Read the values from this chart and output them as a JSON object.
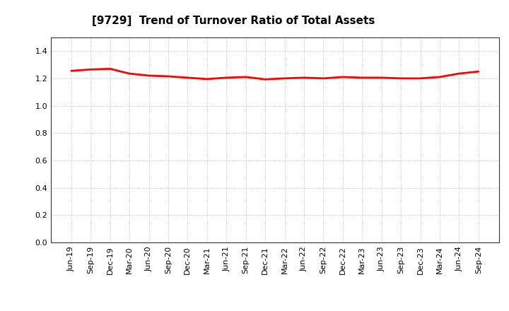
{
  "title": "[9729]  Trend of Turnover Ratio of Total Assets",
  "xlabels": [
    "Jun-19",
    "Sep-19",
    "Dec-19",
    "Mar-20",
    "Jun-20",
    "Sep-20",
    "Dec-20",
    "Mar-21",
    "Jun-21",
    "Sep-21",
    "Dec-21",
    "Mar-22",
    "Jun-22",
    "Sep-22",
    "Dec-22",
    "Mar-23",
    "Jun-23",
    "Sep-23",
    "Dec-23",
    "Mar-24",
    "Jun-24",
    "Sep-24"
  ],
  "values": [
    1.255,
    1.265,
    1.27,
    1.235,
    1.22,
    1.215,
    1.205,
    1.195,
    1.205,
    1.21,
    1.193,
    1.2,
    1.205,
    1.2,
    1.21,
    1.205,
    1.205,
    1.2,
    1.2,
    1.21,
    1.235,
    1.25
  ],
  "line_color": "#ff0000",
  "line_width": 2.0,
  "ylim": [
    0.0,
    1.5
  ],
  "yticks": [
    0.0,
    0.2,
    0.4,
    0.6,
    0.8,
    1.0,
    1.2,
    1.4
  ],
  "background_color": "#ffffff",
  "grid_color": "#999999",
  "title_fontsize": 11,
  "tick_fontsize": 8
}
